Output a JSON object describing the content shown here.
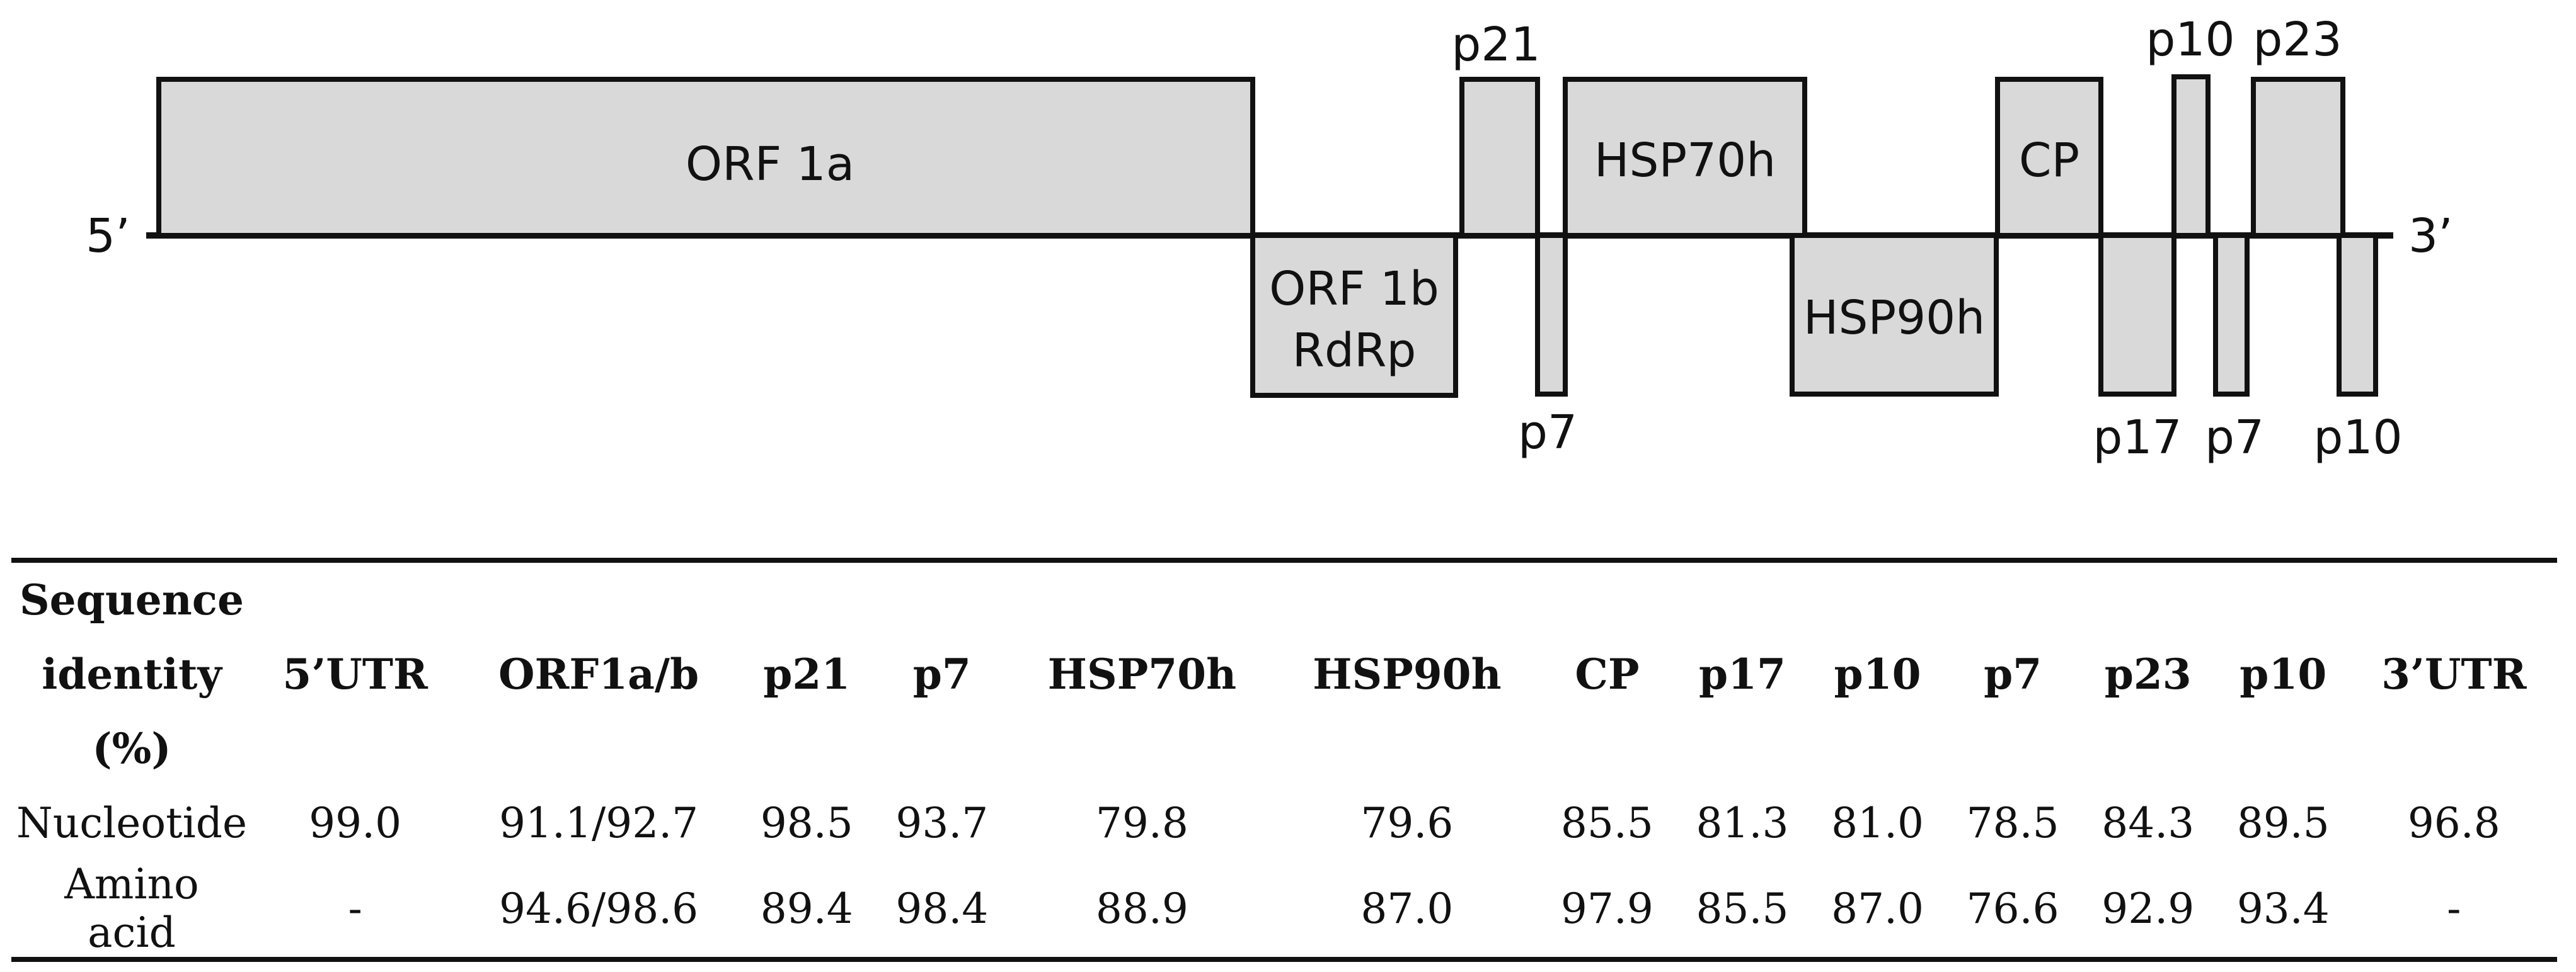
{
  "diagram": {
    "five_prime": "5’",
    "three_prime": "3’",
    "orfs": [
      {
        "id": "orf1a",
        "label": "ORF 1a"
      },
      {
        "id": "orf1b",
        "label": "ORF 1b",
        "label2": "RdRp"
      },
      {
        "id": "p21",
        "label": "p21"
      },
      {
        "id": "p7a",
        "label": "p7"
      },
      {
        "id": "hsp70h",
        "label": "HSP70h"
      },
      {
        "id": "hsp90h",
        "label": "HSP90h"
      },
      {
        "id": "cp",
        "label": "CP"
      },
      {
        "id": "p17",
        "label": "p17"
      },
      {
        "id": "p10a",
        "label": "p10"
      },
      {
        "id": "p7b",
        "label": "p7"
      },
      {
        "id": "p23",
        "label": "p23"
      },
      {
        "id": "p10b",
        "label": "p10"
      }
    ]
  },
  "table": {
    "row_header_lines": [
      "Sequence",
      "identity",
      "(%)"
    ],
    "columns": [
      "5’UTR",
      "ORF1a/b",
      "p21",
      "p7",
      "HSP70h",
      "HSP90h",
      "CP",
      "p17",
      "p10",
      "p7",
      "p23",
      "p10",
      "3’UTR"
    ],
    "rows": [
      {
        "label": "Nucleotide",
        "values": [
          "99.0",
          "91.1/92.7",
          "98.5",
          "93.7",
          "79.8",
          "79.6",
          "85.5",
          "81.3",
          "81.0",
          "78.5",
          "84.3",
          "89.5",
          "96.8"
        ]
      },
      {
        "label": "Amino acid",
        "values": [
          "-",
          "94.6/98.6",
          "89.4",
          "98.4",
          "88.9",
          "87.0",
          "97.9",
          "85.5",
          "87.0",
          "76.6",
          "92.9",
          "93.4",
          "-"
        ]
      }
    ]
  }
}
